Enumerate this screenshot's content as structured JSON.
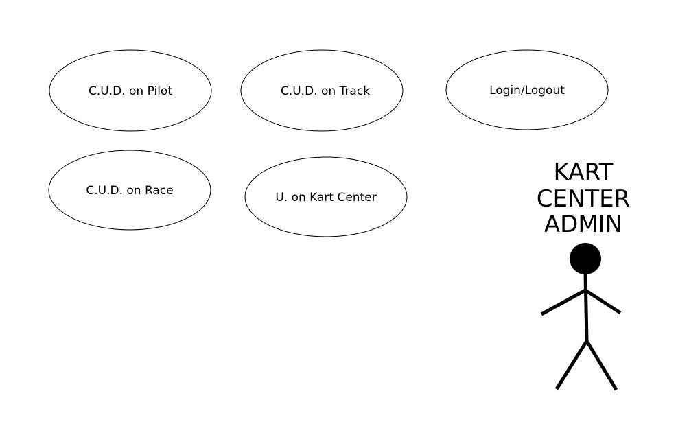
{
  "use_cases": [
    {
      "label": "C.U.D. on Pilot"
    },
    {
      "label": "C.U.D. on Track"
    },
    {
      "label": "Login/Logout"
    },
    {
      "label": "C.U.D. on Race"
    },
    {
      "label": "U. on Kart Center"
    }
  ],
  "actor": {
    "label_lines": [
      "KART",
      "CENTER",
      "ADMIN"
    ]
  },
  "colors": {
    "stroke": "#000000",
    "background": "#ffffff"
  }
}
